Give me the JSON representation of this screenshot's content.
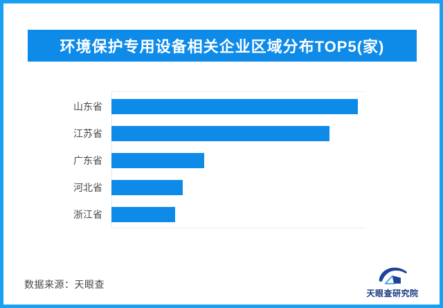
{
  "title": "环境保护专用设备相关企业区域分布TOP5(家)",
  "chart_data": {
    "type": "bar",
    "orientation": "horizontal",
    "title": "环境保护专用设备相关企业区域分布TOP5(家)",
    "categories": [
      "山东省",
      "江苏省",
      "广东省",
      "河北省",
      "浙江省"
    ],
    "values": [
      100,
      88.5,
      37.6,
      28.9,
      25.8
    ],
    "values_unit": "relative length, % of longest bar (no numeric data labels shown in chart)",
    "xlabel": "",
    "ylabel": "",
    "legend": false,
    "grid": false,
    "bar_color": "#0e8ae9",
    "axis_color": "#e6e6e6"
  },
  "footer": {
    "source": "数据来源：天眼查",
    "brand": "天眼查研究院"
  },
  "colors": {
    "accent_blue": "#0e8ae9",
    "frame_border_blue": "#18a0f2",
    "category_label_gray": "#4a4a4a",
    "logo_navy": "#17377f"
  },
  "icons": {
    "brand_logo": "tianyancha-eye-logo"
  }
}
